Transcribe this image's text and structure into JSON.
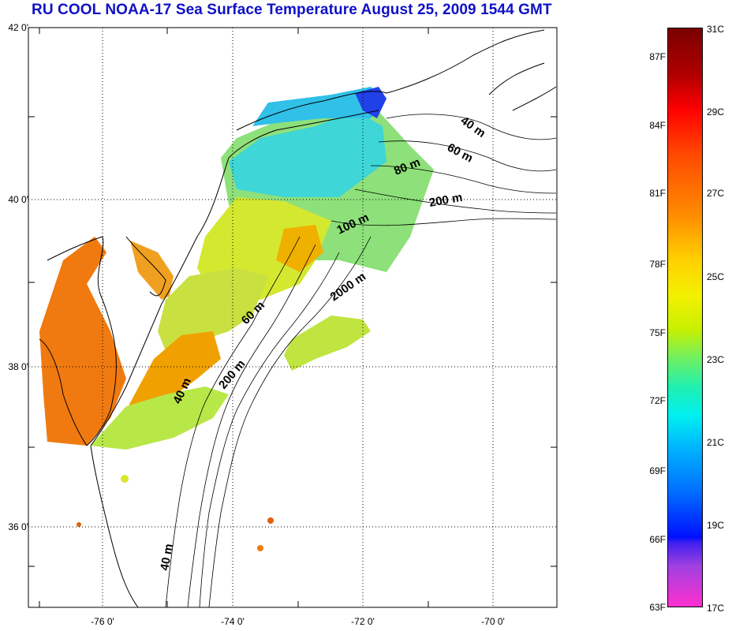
{
  "title": "RU COOL  NOAA-17 Sea Surface Temperature August 25, 2009 1544 GMT",
  "map": {
    "lat_labels": [
      {
        "value": 42,
        "text": "42 0'"
      },
      {
        "value": 40,
        "text": "40 0'"
      },
      {
        "value": 38,
        "text": "38 0'"
      },
      {
        "value": 36,
        "text": "36 0'"
      }
    ],
    "lon_labels": [
      {
        "value": -76,
        "text": "-76 0'"
      },
      {
        "value": -74,
        "text": "-74 0'"
      },
      {
        "value": -72,
        "text": "-72 0'"
      },
      {
        "value": -70,
        "text": "-70 0'"
      }
    ],
    "isobath_labels": [
      "40 m",
      "60 m",
      "80 m",
      "200 m",
      "100 m",
      "2000 m",
      "60 m",
      "200 m",
      "40 m",
      "40 m"
    ]
  },
  "colorbar": {
    "fahrenheit": [
      "87F",
      "84F",
      "81F",
      "78F",
      "75F",
      "72F",
      "69F",
      "66F",
      "63F"
    ],
    "celsius": [
      "31C",
      "29C",
      "27C",
      "25C",
      "23C",
      "21C",
      "19C",
      "17C"
    ],
    "colors": {
      "max": "#7a0000",
      "warm": "#ff8a00",
      "mid": "#f4f000",
      "cool": "#00f0f0",
      "cold": "#0010ff",
      "min": "#ff30d0"
    }
  }
}
